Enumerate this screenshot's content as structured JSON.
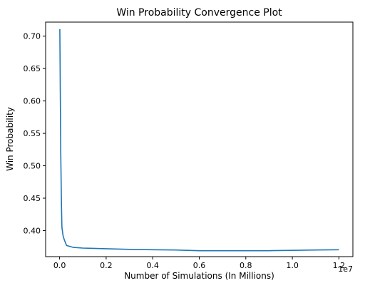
{
  "chart_data": {
    "type": "line",
    "title": "Win Probability Convergence Plot",
    "xlabel": "Number of Simulations (In Millions)",
    "ylabel": "Win Probability",
    "x_offset_label": "1e7",
    "xlim": [
      -600000,
      12600000
    ],
    "ylim": [
      0.3598,
      0.7217
    ],
    "xticks": [
      0,
      2000000,
      4000000,
      6000000,
      8000000,
      10000000,
      12000000
    ],
    "xtick_labels": [
      "0.0",
      "0.2",
      "0.4",
      "0.6",
      "0.8",
      "1.0",
      "1.2"
    ],
    "yticks": [
      0.4,
      0.45,
      0.5,
      0.55,
      0.6,
      0.65,
      0.7
    ],
    "ytick_labels": [
      "0.40",
      "0.45",
      "0.50",
      "0.55",
      "0.60",
      "0.65",
      "0.70"
    ],
    "grid": false,
    "series": [
      {
        "color": "#1f77b4",
        "x": [
          10000,
          50000,
          80000,
          100000,
          150000,
          200000,
          300000,
          600000,
          1000000,
          2000000,
          3000000,
          4000000,
          5000000,
          6000000,
          7000000,
          8000000,
          9000000,
          10000000,
          11000000,
          12000000
        ],
        "y": [
          0.711,
          0.52,
          0.44,
          0.405,
          0.392,
          0.386,
          0.377,
          0.374,
          0.373,
          0.372,
          0.371,
          0.3705,
          0.37,
          0.369,
          0.369,
          0.369,
          0.369,
          0.3695,
          0.37,
          0.3705
        ]
      }
    ]
  }
}
